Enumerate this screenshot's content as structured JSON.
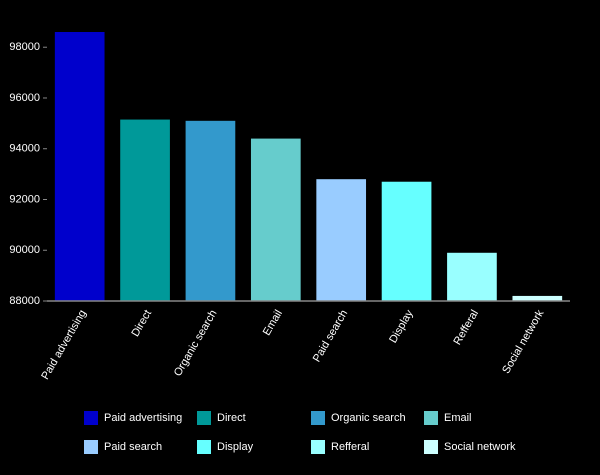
{
  "chart_data": {
    "type": "bar",
    "categories": [
      "Paid advertising",
      "Direct",
      "Organic search",
      "Email",
      "Paid search",
      "Display",
      "Refferal",
      "Social network"
    ],
    "values": [
      98600,
      95150,
      95100,
      94400,
      92800,
      92700,
      89900,
      88200
    ],
    "colors": [
      "#0000cc",
      "#009999",
      "#3399cc",
      "#66cccc",
      "#99ccff",
      "#66ffff",
      "#99ffff",
      "#ccffff"
    ],
    "ylim": [
      88000,
      98600
    ],
    "yticks": [
      88000,
      90000,
      92000,
      94000,
      96000,
      98000
    ],
    "legend": "bottom"
  }
}
